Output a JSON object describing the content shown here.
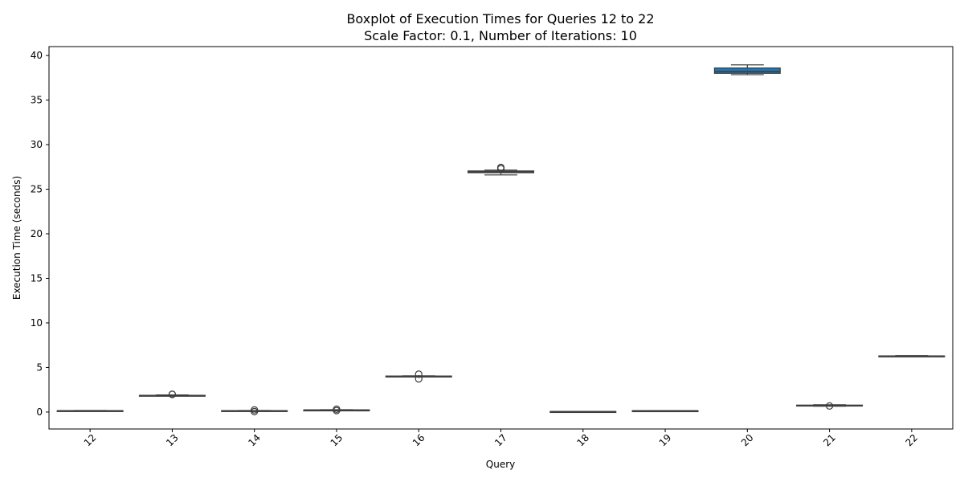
{
  "chart_data": {
    "type": "box",
    "title": "Boxplot of Execution Times for Queries 12 to 22",
    "subtitle": "Scale Factor: 0.1, Number of Iterations: 10",
    "xlabel": "Query",
    "ylabel": "Execution Time (seconds)",
    "ylim": [
      -1.9,
      41.0
    ],
    "yticks": [
      0,
      5,
      10,
      15,
      20,
      25,
      30,
      35,
      40
    ],
    "categories": [
      "12",
      "13",
      "14",
      "15",
      "16",
      "17",
      "18",
      "19",
      "20",
      "21",
      "22"
    ],
    "grid": false,
    "box_color": "#1f77b4",
    "line_color": "#3d3d3d",
    "boxes": [
      {
        "query": "12",
        "whisker_low": 0.13,
        "q1": 0.14,
        "median": 0.15,
        "q3": 0.16,
        "whisker_high": 0.17,
        "outliers": []
      },
      {
        "query": "13",
        "whisker_low": 1.8,
        "q1": 1.83,
        "median": 1.85,
        "q3": 1.88,
        "whisker_high": 1.92,
        "outliers": [
          1.98,
          2.0
        ]
      },
      {
        "query": "14",
        "whisker_low": 0.12,
        "q1": 0.14,
        "median": 0.15,
        "q3": 0.16,
        "whisker_high": 0.18,
        "outliers": [
          0.24,
          0.05
        ]
      },
      {
        "query": "15",
        "whisker_low": 0.2,
        "q1": 0.22,
        "median": 0.23,
        "q3": 0.24,
        "whisker_high": 0.26,
        "outliers": [
          0.32,
          0.16
        ]
      },
      {
        "query": "16",
        "whisker_low": 3.98,
        "q1": 4.0,
        "median": 4.02,
        "q3": 4.04,
        "whisker_high": 4.06,
        "outliers": [
          4.25,
          3.72
        ]
      },
      {
        "query": "17",
        "whisker_low": 26.6,
        "q1": 26.85,
        "median": 26.95,
        "q3": 27.05,
        "whisker_high": 27.15,
        "outliers": [
          27.45,
          27.3
        ]
      },
      {
        "query": "18",
        "whisker_low": 0.04,
        "q1": 0.05,
        "median": 0.06,
        "q3": 0.06,
        "whisker_high": 0.07,
        "outliers": []
      },
      {
        "query": "19",
        "whisker_low": 0.12,
        "q1": 0.13,
        "median": 0.14,
        "q3": 0.15,
        "whisker_high": 0.16,
        "outliers": []
      },
      {
        "query": "20",
        "whisker_low": 37.85,
        "q1": 38.0,
        "median": 38.2,
        "q3": 38.6,
        "whisker_high": 38.95,
        "outliers": []
      },
      {
        "query": "21",
        "whisker_low": 0.66,
        "q1": 0.7,
        "median": 0.74,
        "q3": 0.78,
        "whisker_high": 0.82,
        "outliers": [
          0.68
        ]
      },
      {
        "query": "22",
        "whisker_low": 6.24,
        "q1": 6.26,
        "median": 6.28,
        "q3": 6.3,
        "whisker_high": 6.33,
        "outliers": []
      }
    ]
  }
}
